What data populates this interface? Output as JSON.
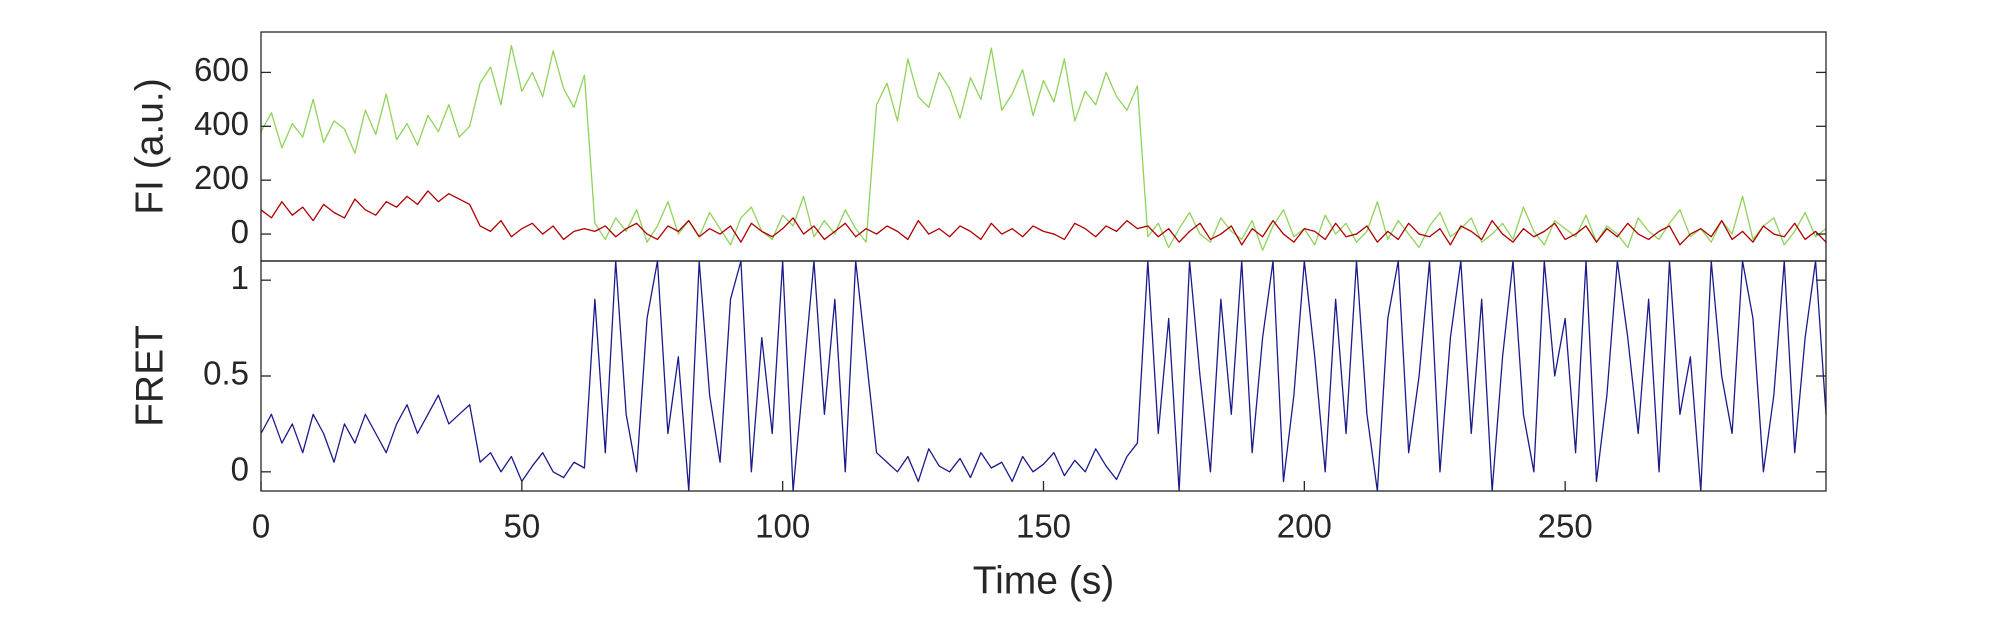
{
  "chart_data": [
    {
      "type": "line",
      "ylabel": "FI (a.u.)",
      "xlim": [
        0,
        300
      ],
      "ylim": [
        -100,
        750
      ],
      "yticks": [
        0,
        200,
        400,
        600
      ],
      "x": [
        0,
        2,
        4,
        6,
        8,
        10,
        12,
        14,
        16,
        18,
        20,
        22,
        24,
        26,
        28,
        30,
        32,
        34,
        36,
        38,
        40,
        42,
        44,
        46,
        48,
        50,
        52,
        54,
        56,
        58,
        60,
        62,
        64,
        66,
        68,
        70,
        72,
        74,
        76,
        78,
        80,
        82,
        84,
        86,
        88,
        90,
        92,
        94,
        96,
        98,
        100,
        102,
        104,
        106,
        108,
        110,
        112,
        114,
        116,
        118,
        120,
        122,
        124,
        126,
        128,
        130,
        132,
        134,
        136,
        138,
        140,
        142,
        144,
        146,
        148,
        150,
        152,
        154,
        156,
        158,
        160,
        162,
        164,
        166,
        168,
        170,
        172,
        174,
        176,
        178,
        180,
        182,
        184,
        186,
        188,
        190,
        192,
        194,
        196,
        198,
        200,
        202,
        204,
        206,
        208,
        210,
        212,
        214,
        216,
        218,
        220,
        222,
        224,
        226,
        228,
        230,
        232,
        234,
        236,
        238,
        240,
        242,
        244,
        246,
        248,
        250,
        252,
        254,
        256,
        258,
        260,
        262,
        264,
        266,
        268,
        270,
        272,
        274,
        276,
        278,
        280,
        282,
        284,
        286,
        288,
        290,
        292,
        294,
        296,
        298,
        300
      ],
      "series": [
        {
          "color": "#8fd35a",
          "values": [
            380,
            450,
            320,
            410,
            360,
            500,
            340,
            420,
            390,
            300,
            460,
            370,
            520,
            350,
            410,
            330,
            440,
            380,
            480,
            360,
            400,
            560,
            620,
            480,
            700,
            530,
            600,
            510,
            680,
            540,
            470,
            590,
            40,
            -20,
            60,
            10,
            90,
            -30,
            30,
            120,
            0,
            50,
            -10,
            80,
            20,
            -40,
            60,
            100,
            10,
            -20,
            70,
            30,
            140,
            -10,
            50,
            0,
            90,
            20,
            -30,
            480,
            560,
            420,
            650,
            510,
            470,
            600,
            540,
            430,
            580,
            500,
            690,
            460,
            520,
            610,
            440,
            570,
            490,
            650,
            420,
            530,
            480,
            600,
            510,
            460,
            550,
            -10,
            40,
            -50,
            20,
            80,
            0,
            -30,
            60,
            10,
            -20,
            50,
            -60,
            30,
            90,
            -10,
            20,
            -40,
            70,
            0,
            40,
            -30,
            10,
            120,
            -20,
            50,
            0,
            -50,
            30,
            80,
            -10,
            20,
            60,
            -30,
            0,
            40,
            -20,
            100,
            10,
            -40,
            50,
            20,
            -10,
            70,
            -30,
            30,
            0,
            -50,
            60,
            10,
            -20,
            40,
            90,
            -10,
            20,
            -30,
            50,
            0,
            140,
            -20,
            30,
            60,
            -40,
            10,
            80,
            -10,
            20
          ]
        },
        {
          "color": "#b00000",
          "values": [
            90,
            60,
            120,
            70,
            100,
            50,
            110,
            80,
            60,
            130,
            90,
            70,
            120,
            100,
            140,
            110,
            160,
            120,
            150,
            130,
            110,
            30,
            10,
            50,
            -10,
            20,
            40,
            0,
            30,
            -20,
            10,
            20,
            10,
            30,
            -10,
            20,
            40,
            0,
            -20,
            30,
            10,
            50,
            -10,
            20,
            0,
            30,
            -30,
            40,
            10,
            -10,
            20,
            60,
            0,
            30,
            -20,
            10,
            40,
            -10,
            20,
            0,
            30,
            10,
            -20,
            50,
            0,
            20,
            -10,
            30,
            10,
            -20,
            40,
            0,
            20,
            -10,
            30,
            10,
            0,
            -20,
            40,
            20,
            -10,
            30,
            10,
            50,
            20,
            30,
            -10,
            20,
            -30,
            10,
            40,
            -20,
            0,
            30,
            -40,
            20,
            -10,
            50,
            0,
            -30,
            20,
            10,
            -20,
            40,
            -10,
            0,
            30,
            -30,
            10,
            -20,
            40,
            0,
            -10,
            20,
            -40,
            30,
            10,
            -20,
            50,
            0,
            -30,
            20,
            -10,
            10,
            40,
            -20,
            0,
            30,
            -30,
            20,
            -10,
            40,
            0,
            -20,
            10,
            30,
            -40,
            0,
            20,
            -10,
            50,
            -20,
            10,
            -30,
            30,
            0,
            -10,
            40,
            -20,
            10,
            -30
          ]
        }
      ]
    },
    {
      "type": "line",
      "ylabel": "FRET",
      "xlabel": "Time (s)",
      "xlim": [
        0,
        300
      ],
      "xticks": [
        0,
        50,
        100,
        150,
        200,
        250
      ],
      "ylim": [
        -0.1,
        1.1
      ],
      "yticks": [
        0,
        0.5,
        1
      ],
      "x": [
        0,
        2,
        4,
        6,
        8,
        10,
        12,
        14,
        16,
        18,
        20,
        22,
        24,
        26,
        28,
        30,
        32,
        34,
        36,
        38,
        40,
        42,
        44,
        46,
        48,
        50,
        52,
        54,
        56,
        58,
        60,
        62,
        64,
        66,
        68,
        70,
        72,
        74,
        76,
        78,
        80,
        82,
        84,
        86,
        88,
        90,
        92,
        94,
        96,
        98,
        100,
        102,
        104,
        106,
        108,
        110,
        112,
        114,
        116,
        118,
        120,
        122,
        124,
        126,
        128,
        130,
        132,
        134,
        136,
        138,
        140,
        142,
        144,
        146,
        148,
        150,
        152,
        154,
        156,
        158,
        160,
        162,
        164,
        166,
        168,
        170,
        172,
        174,
        176,
        178,
        180,
        182,
        184,
        186,
        188,
        190,
        192,
        194,
        196,
        198,
        200,
        202,
        204,
        206,
        208,
        210,
        212,
        214,
        216,
        218,
        220,
        222,
        224,
        226,
        228,
        230,
        232,
        234,
        236,
        238,
        240,
        242,
        244,
        246,
        248,
        250,
        252,
        254,
        256,
        258,
        260,
        262,
        264,
        266,
        268,
        270,
        272,
        274,
        276,
        278,
        280,
        282,
        284,
        286,
        288,
        290,
        292,
        294,
        296,
        298,
        300
      ],
      "series": [
        {
          "color": "#1a1a8c",
          "values": [
            0.2,
            0.3,
            0.15,
            0.25,
            0.1,
            0.3,
            0.2,
            0.05,
            0.25,
            0.15,
            0.3,
            0.2,
            0.1,
            0.25,
            0.35,
            0.2,
            0.3,
            0.4,
            0.25,
            0.3,
            0.35,
            0.05,
            0.1,
            0,
            0.08,
            -0.05,
            0.03,
            0.1,
            0,
            -0.03,
            0.05,
            0.02,
            0.9,
            0.1,
            1.1,
            0.3,
            0,
            0.8,
            1.1,
            0.2,
            0.6,
            -0.1,
            1.1,
            0.4,
            0.05,
            0.9,
            1.1,
            0,
            0.7,
            0.2,
            1.1,
            -0.1,
            0.5,
            1.1,
            0.3,
            0.9,
            0,
            1.1,
            0.6,
            0.1,
            0.05,
            0,
            0.08,
            -0.05,
            0.12,
            0.03,
            0,
            0.07,
            -0.03,
            0.1,
            0.02,
            0.05,
            -0.05,
            0.08,
            0,
            0.04,
            0.1,
            -0.02,
            0.06,
            0,
            0.12,
            0.03,
            -0.04,
            0.08,
            0.15,
            1.1,
            0.2,
            0.8,
            -0.1,
            1.1,
            0.5,
            0,
            0.9,
            0.3,
            1.1,
            0.1,
            0.7,
            1.1,
            -0.05,
            0.4,
            1.1,
            0.6,
            0,
            0.9,
            0.2,
            1.1,
            0.3,
            -0.1,
            0.8,
            1.1,
            0.1,
            0.5,
            1.1,
            0,
            0.7,
            1.1,
            0.2,
            0.9,
            -0.1,
            0.6,
            1.1,
            0.3,
            0,
            1.1,
            0.5,
            0.8,
            0.1,
            1.1,
            -0.05,
            0.4,
            1.1,
            0.7,
            0.2,
            0.9,
            0,
            1.1,
            0.3,
            0.6,
            -0.1,
            1.1,
            0.5,
            0.2,
            1.1,
            0.8,
            0,
            0.4,
            1.1,
            0.1,
            0.7,
            1.1,
            0.3
          ]
        }
      ]
    }
  ]
}
